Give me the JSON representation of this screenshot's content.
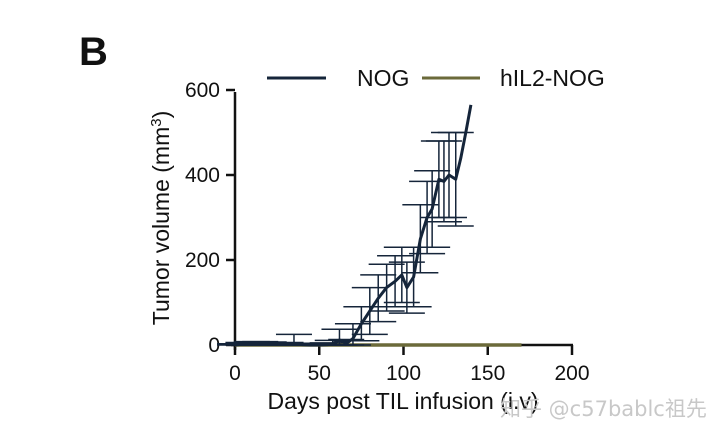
{
  "panel_label": "B",
  "watermark": "知乎 @c57bablc祖先",
  "chart_data": {
    "type": "line",
    "title": "",
    "xlabel": "Days post TIL infusion (i.v)",
    "ylabel_main": "Tumor volume (mm",
    "ylabel_sup": "3",
    "ylabel_close": ")",
    "xlim": [
      0,
      200
    ],
    "ylim": [
      0,
      600
    ],
    "xticks": [
      0,
      50,
      100,
      150,
      200
    ],
    "yticks": [
      0,
      200,
      400,
      600
    ],
    "xtick_labels": [
      "0",
      "50",
      "100",
      "150",
      "200"
    ],
    "ytick_labels": [
      "0",
      "200",
      "400",
      "600"
    ],
    "grid": false,
    "legend_position": "top",
    "series": [
      {
        "name": "NOG",
        "color": "#15253a",
        "x": [
          0,
          5,
          10,
          15,
          20,
          25,
          30,
          35,
          40,
          45,
          50,
          55,
          58,
          62,
          66,
          70,
          75,
          80,
          85,
          90,
          95,
          99,
          102,
          106,
          110,
          114,
          117,
          121,
          124,
          127,
          131,
          134,
          137,
          140
        ],
        "y": [
          0,
          2,
          3,
          4,
          3,
          2,
          2,
          3,
          1,
          0,
          0,
          1,
          3,
          12,
          3,
          15,
          50,
          80,
          110,
          135,
          150,
          165,
          135,
          160,
          250,
          300,
          320,
          390,
          385,
          400,
          390,
          440,
          500,
          565
        ],
        "error": [
          3,
          4,
          5,
          4,
          4,
          3,
          4,
          22,
          3,
          2,
          3,
          4,
          8,
          25,
          10,
          35,
          40,
          55,
          55,
          55,
          60,
          65,
          60,
          70,
          80,
          85,
          90,
          90,
          95,
          100,
          110,
          0,
          0,
          0
        ]
      },
      {
        "name": "hIL2-NOG",
        "color": "#6b6a3a",
        "x": [
          0,
          20,
          40,
          60,
          80,
          100,
          120,
          140,
          160,
          170
        ],
        "y": [
          0,
          0,
          0,
          0,
          0,
          0,
          0,
          0,
          0,
          0
        ],
        "error": [
          0,
          0,
          0,
          0,
          0,
          0,
          0,
          0,
          0,
          0
        ]
      }
    ]
  }
}
